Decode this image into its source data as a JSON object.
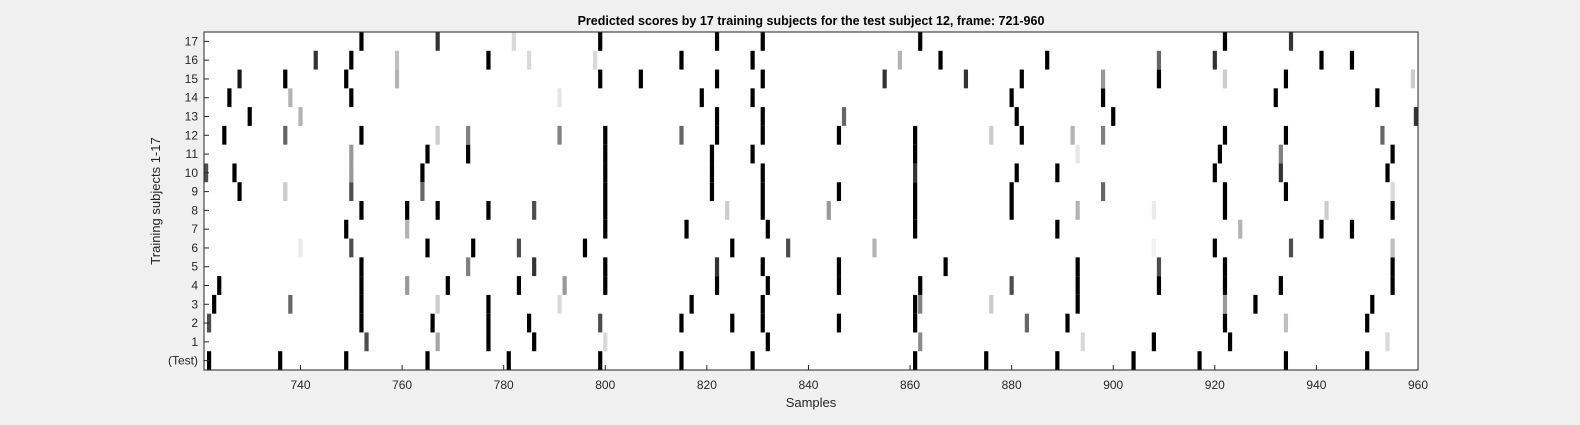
{
  "chart_data": {
    "type": "heatmap",
    "title": "Predicted scores by 17 training subjects for the test subject 12, frame: 721-960",
    "xlabel": "Samples",
    "ylabel": "Training subjects 1-17",
    "xlim": [
      721,
      960
    ],
    "x_ticks": [
      740,
      760,
      780,
      800,
      820,
      840,
      860,
      880,
      900,
      920,
      940,
      960
    ],
    "y_tick_labels": [
      "(Test)",
      "1",
      "2",
      "3",
      "4",
      "5",
      "6",
      "7",
      "8",
      "9",
      "10",
      "11",
      "12",
      "13",
      "14",
      "15",
      "16",
      "17"
    ],
    "colormap": "gray, 1 = black, 0 = white",
    "background": "#f0f0f0",
    "grid": false,
    "rows": [
      {
        "label": "(Test)",
        "marks": [
          [
            722,
            1
          ],
          [
            736,
            1
          ],
          [
            749,
            1
          ],
          [
            765,
            1
          ],
          [
            781,
            1
          ],
          [
            799,
            1
          ],
          [
            815,
            1
          ],
          [
            829,
            1
          ],
          [
            861,
            1
          ],
          [
            875,
            1
          ],
          [
            889,
            1
          ],
          [
            904,
            1
          ],
          [
            917,
            1
          ],
          [
            934,
            1
          ],
          [
            950,
            1
          ]
        ]
      },
      {
        "label": "1",
        "marks": [
          [
            753,
            0.7
          ],
          [
            767,
            0.35
          ],
          [
            777,
            1
          ],
          [
            786,
            1
          ],
          [
            800,
            0.15
          ],
          [
            832,
            1
          ],
          [
            862,
            0.45
          ],
          [
            894,
            0.15
          ],
          [
            908,
            1
          ],
          [
            923,
            1
          ],
          [
            954,
            0.15
          ]
        ]
      },
      {
        "label": "2",
        "marks": [
          [
            722,
            0.7
          ],
          [
            752,
            1
          ],
          [
            766,
            1
          ],
          [
            777,
            1
          ],
          [
            785,
            1
          ],
          [
            799,
            0.7
          ],
          [
            815,
            1
          ],
          [
            825,
            1
          ],
          [
            831,
            1
          ],
          [
            846,
            1
          ],
          [
            861,
            1
          ],
          [
            883,
            0.6
          ],
          [
            891,
            1
          ],
          [
            922,
            1
          ],
          [
            934,
            0.25
          ],
          [
            950,
            1
          ]
        ]
      },
      {
        "label": "3",
        "marks": [
          [
            723,
            1
          ],
          [
            738,
            0.6
          ],
          [
            752,
            1
          ],
          [
            767,
            0.2
          ],
          [
            777,
            1
          ],
          [
            791,
            0.15
          ],
          [
            817,
            1
          ],
          [
            831,
            1
          ],
          [
            861,
            1
          ],
          [
            862,
            0.5
          ],
          [
            876,
            0.2
          ],
          [
            893,
            1
          ],
          [
            922,
            0.4
          ],
          [
            928,
            1
          ],
          [
            951,
            1
          ]
        ]
      },
      {
        "label": "4",
        "marks": [
          [
            724,
            1
          ],
          [
            752,
            1
          ],
          [
            761,
            0.4
          ],
          [
            769,
            1
          ],
          [
            783,
            1
          ],
          [
            792,
            0.4
          ],
          [
            800,
            1
          ],
          [
            822,
            1
          ],
          [
            832,
            1
          ],
          [
            846,
            1
          ],
          [
            862,
            1
          ],
          [
            880,
            0.7
          ],
          [
            893,
            1
          ],
          [
            909,
            1
          ],
          [
            922,
            1
          ],
          [
            933,
            1
          ],
          [
            955,
            1
          ]
        ]
      },
      {
        "label": "5",
        "marks": [
          [
            752,
            1
          ],
          [
            773,
            0.5
          ],
          [
            786,
            0.8
          ],
          [
            800,
            1
          ],
          [
            822,
            0.8
          ],
          [
            831,
            1
          ],
          [
            846,
            1
          ],
          [
            867,
            1
          ],
          [
            893,
            1
          ],
          [
            909,
            0.7
          ],
          [
            922,
            1
          ],
          [
            955,
            1
          ]
        ]
      },
      {
        "label": "6",
        "marks": [
          [
            740,
            0.08
          ],
          [
            750,
            0.7
          ],
          [
            765,
            1
          ],
          [
            774,
            1
          ],
          [
            783,
            0.7
          ],
          [
            796,
            1
          ],
          [
            825,
            1
          ],
          [
            836,
            0.7
          ],
          [
            853,
            0.3
          ],
          [
            908,
            0.05
          ],
          [
            920,
            1
          ],
          [
            935,
            0.7
          ],
          [
            955,
            0.25
          ]
        ]
      },
      {
        "label": "7",
        "marks": [
          [
            749,
            1
          ],
          [
            761,
            0.3
          ],
          [
            800,
            1
          ],
          [
            816,
            1
          ],
          [
            832,
            1
          ],
          [
            861,
            1
          ],
          [
            889,
            1
          ],
          [
            925,
            0.3
          ],
          [
            941,
            1
          ],
          [
            947,
            1
          ]
        ]
      },
      {
        "label": "8",
        "marks": [
          [
            752,
            1
          ],
          [
            761,
            1
          ],
          [
            767,
            1
          ],
          [
            777,
            1
          ],
          [
            786,
            0.7
          ],
          [
            800,
            1
          ],
          [
            824,
            0.2
          ],
          [
            831,
            1
          ],
          [
            844,
            0.4
          ],
          [
            861,
            1
          ],
          [
            880,
            1
          ],
          [
            893,
            0.3
          ],
          [
            908,
            0.08
          ],
          [
            922,
            1
          ],
          [
            942,
            0.2
          ],
          [
            955,
            1
          ]
        ]
      },
      {
        "label": "9",
        "marks": [
          [
            728,
            1
          ],
          [
            737,
            0.2
          ],
          [
            750,
            0.7
          ],
          [
            764,
            0.6
          ],
          [
            800,
            1
          ],
          [
            821,
            1
          ],
          [
            831,
            1
          ],
          [
            846,
            1
          ],
          [
            861,
            1
          ],
          [
            880,
            1
          ],
          [
            898,
            0.6
          ],
          [
            922,
            1
          ],
          [
            934,
            1
          ],
          [
            955,
            0.15
          ]
        ]
      },
      {
        "label": "10",
        "marks": [
          [
            721,
            0.7
          ],
          [
            727,
            1
          ],
          [
            750,
            0.4
          ],
          [
            764,
            1
          ],
          [
            800,
            1
          ],
          [
            821,
            1
          ],
          [
            831,
            1
          ],
          [
            861,
            0.8
          ],
          [
            881,
            1
          ],
          [
            889,
            1
          ],
          [
            920,
            1
          ],
          [
            933,
            0.8
          ],
          [
            954,
            1
          ]
        ]
      },
      {
        "label": "11",
        "marks": [
          [
            750,
            0.4
          ],
          [
            765,
            1
          ],
          [
            773,
            1
          ],
          [
            800,
            1
          ],
          [
            821,
            1
          ],
          [
            829,
            1
          ],
          [
            861,
            1
          ],
          [
            893,
            0.1
          ],
          [
            921,
            1
          ],
          [
            933,
            0.5
          ],
          [
            955,
            1
          ]
        ]
      },
      {
        "label": "12",
        "marks": [
          [
            725,
            1
          ],
          [
            737,
            0.6
          ],
          [
            752,
            1
          ],
          [
            767,
            0.2
          ],
          [
            773,
            0.5
          ],
          [
            791,
            0.5
          ],
          [
            800,
            1
          ],
          [
            815,
            0.6
          ],
          [
            822,
            1
          ],
          [
            831,
            1
          ],
          [
            846,
            1
          ],
          [
            861,
            1
          ],
          [
            876,
            0.2
          ],
          [
            882,
            1
          ],
          [
            892,
            0.3
          ],
          [
            898,
            0.5
          ],
          [
            922,
            1
          ],
          [
            934,
            1
          ],
          [
            953,
            0.6
          ]
        ]
      },
      {
        "label": "13",
        "marks": [
          [
            730,
            1
          ],
          [
            740,
            0.3
          ],
          [
            822,
            1
          ],
          [
            831,
            1
          ],
          [
            847,
            0.6
          ],
          [
            881,
            1
          ],
          [
            900,
            1
          ],
          [
            960,
            0.8
          ]
        ]
      },
      {
        "label": "14",
        "marks": [
          [
            726,
            1
          ],
          [
            738,
            0.3
          ],
          [
            750,
            1
          ],
          [
            791,
            0.1
          ],
          [
            819,
            1
          ],
          [
            829,
            1
          ],
          [
            880,
            1
          ],
          [
            898,
            1
          ],
          [
            932,
            1
          ],
          [
            952,
            1
          ]
        ]
      },
      {
        "label": "15",
        "marks": [
          [
            728,
            0.9
          ],
          [
            737,
            1
          ],
          [
            749,
            1
          ],
          [
            759,
            0.3
          ],
          [
            799,
            1
          ],
          [
            807,
            1
          ],
          [
            822,
            1
          ],
          [
            831,
            1
          ],
          [
            855,
            0.8
          ],
          [
            871,
            0.8
          ],
          [
            882,
            1
          ],
          [
            898,
            0.4
          ],
          [
            909,
            1
          ],
          [
            922,
            0.2
          ],
          [
            934,
            1
          ],
          [
            959,
            0.2
          ]
        ]
      },
      {
        "label": "16",
        "marks": [
          [
            743,
            0.8
          ],
          [
            750,
            1
          ],
          [
            759,
            0.25
          ],
          [
            777,
            1
          ],
          [
            785,
            0.15
          ],
          [
            798,
            0.15
          ],
          [
            815,
            1
          ],
          [
            829,
            1
          ],
          [
            858,
            0.3
          ],
          [
            866,
            1
          ],
          [
            887,
            1
          ],
          [
            909,
            0.6
          ],
          [
            920,
            0.8
          ],
          [
            941,
            1
          ],
          [
            947,
            1
          ]
        ]
      },
      {
        "label": "17",
        "marks": [
          [
            752,
            1
          ],
          [
            767,
            0.8
          ],
          [
            782,
            0.15
          ],
          [
            799,
            1
          ],
          [
            822,
            1
          ],
          [
            831,
            1
          ],
          [
            862,
            1
          ],
          [
            922,
            1
          ],
          [
            935,
            0.8
          ]
        ]
      }
    ]
  }
}
